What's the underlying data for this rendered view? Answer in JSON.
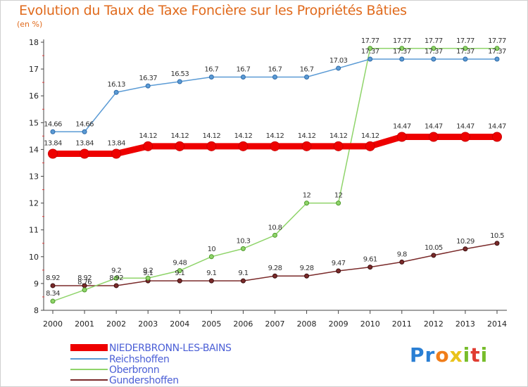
{
  "title": "Evolution du Taux de Taxe Foncière sur les Propriétés Bâties",
  "unit_label": "(en %)",
  "logo": {
    "letters": [
      "P",
      "r",
      "o",
      "x",
      "i",
      "t",
      "i"
    ],
    "colors": [
      "#2a7fd4",
      "#2a7fd4",
      "#f07d1a",
      "#e9c31b",
      "#77bd2b",
      "#e03c31",
      "#77bd2b"
    ]
  },
  "chart_data": {
    "type": "line",
    "x": [
      "2000",
      "2001",
      "2002",
      "2003",
      "2004",
      "2005",
      "2006",
      "2007",
      "2008",
      "2009",
      "2010",
      "2011",
      "2012",
      "2013",
      "2014"
    ],
    "ylim": [
      8,
      18
    ],
    "yticks": [
      "8",
      "9",
      "10",
      "11",
      "12",
      "13",
      "14",
      "15",
      "16",
      "17",
      "18"
    ],
    "grid": false,
    "legend_position": "bottom-left",
    "series": [
      {
        "name": "NIEDERBRONN-LES-BAINS",
        "color": "#ee0000",
        "values": [
          13.84,
          13.84,
          13.84,
          14.12,
          14.12,
          14.12,
          14.12,
          14.12,
          14.12,
          14.12,
          14.12,
          14.47,
          14.47,
          14.47,
          14.47
        ],
        "labels": [
          "13.84",
          "13.84",
          "13.84",
          "14.12",
          "14.12",
          "14.12",
          "14.12",
          "14.12",
          "14.12",
          "14.12",
          "14.12",
          "14.47",
          "14.47",
          "14.47",
          "14.47"
        ]
      },
      {
        "name": "Reichshoffen",
        "color": "#5b9bd5",
        "values": [
          14.66,
          14.66,
          16.13,
          16.37,
          16.53,
          16.7,
          16.7,
          16.7,
          16.7,
          17.03,
          17.37,
          17.37,
          17.37,
          17.37,
          17.37
        ],
        "labels": [
          "14.66",
          "14.66",
          "16.13",
          "16.37",
          "16.53",
          "16.7",
          "16.7",
          "16.7",
          "16.7",
          "17.03",
          "17.37",
          "17.37",
          "17.37",
          "17.37",
          "17.37"
        ]
      },
      {
        "name": "Oberbronn",
        "color": "#8fd46a",
        "values": [
          8.34,
          8.76,
          9.2,
          9.2,
          9.48,
          10,
          10.3,
          10.8,
          12,
          12,
          17.77,
          17.77,
          17.77,
          17.77,
          17.77
        ],
        "labels": [
          "8.34",
          "8.76",
          "9.2",
          "9.2",
          "9.48",
          "10",
          "10.3",
          "10.8",
          "12",
          "12",
          "17.77",
          "17.77",
          "17.77",
          "17.77",
          "17.77"
        ]
      },
      {
        "name": "Gundershoffen",
        "color": "#7a2a2a",
        "values": [
          8.92,
          8.92,
          8.92,
          9.1,
          9.1,
          9.1,
          9.1,
          9.28,
          9.28,
          9.47,
          9.61,
          9.8,
          10.05,
          10.29,
          10.5
        ],
        "labels": [
          "8.92",
          "8.92",
          "8.92",
          "9.1",
          "9.1",
          "9.1",
          "9.1",
          "9.28",
          "9.28",
          "9.47",
          "9.61",
          "9.8",
          "10.05",
          "10.29",
          "10.5"
        ]
      }
    ]
  }
}
